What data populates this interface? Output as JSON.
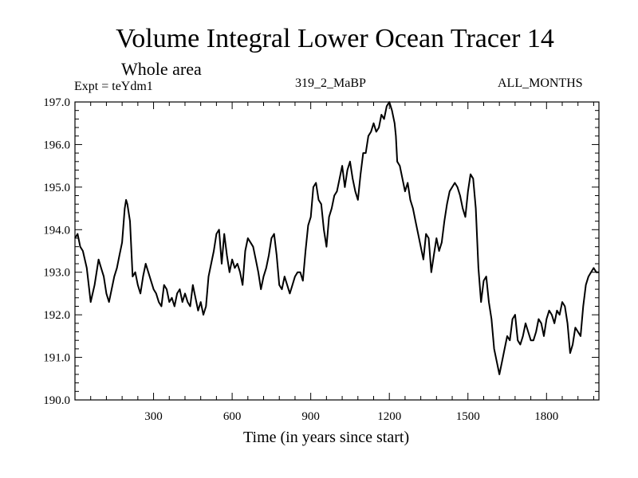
{
  "chart_data": {
    "type": "line",
    "title": "Volume Integral Lower Ocean Tracer 14",
    "subtitle": "Whole area",
    "annotations": {
      "expt": "Expt = teYdm1",
      "period": "319_2_MaBP",
      "months": "ALL_MONTHS"
    },
    "xlabel": "Time (in years since start)",
    "ylabel": "",
    "xlim": [
      0,
      2000
    ],
    "ylim": [
      190.0,
      197.0
    ],
    "x_ticks": [
      300,
      600,
      900,
      1200,
      1500,
      1800
    ],
    "x_tick_labels": [
      "300",
      "600",
      "900",
      "1200",
      "1500",
      "1800"
    ],
    "y_ticks": [
      190.0,
      191.0,
      192.0,
      193.0,
      194.0,
      195.0,
      196.0,
      197.0
    ],
    "y_tick_labels": [
      "190.0",
      "191.0",
      "192.0",
      "193.0",
      "194.0",
      "195.0",
      "196.0",
      "197.0"
    ],
    "grid": false,
    "series": [
      {
        "name": "Volume Integral Lower Ocean Tracer 14",
        "x": [
          0,
          10,
          20,
          30,
          45,
          60,
          75,
          90,
          100,
          110,
          120,
          130,
          140,
          150,
          160,
          170,
          180,
          190,
          195,
          200,
          210,
          220,
          230,
          240,
          250,
          260,
          270,
          280,
          290,
          300,
          310,
          320,
          330,
          340,
          350,
          360,
          370,
          380,
          390,
          400,
          410,
          420,
          430,
          440,
          450,
          460,
          470,
          480,
          490,
          500,
          510,
          520,
          530,
          540,
          550,
          560,
          570,
          580,
          590,
          600,
          610,
          620,
          630,
          640,
          650,
          660,
          670,
          680,
          690,
          700,
          710,
          720,
          730,
          740,
          750,
          760,
          770,
          780,
          790,
          800,
          810,
          820,
          830,
          840,
          850,
          860,
          870,
          880,
          890,
          900,
          910,
          920,
          930,
          940,
          950,
          960,
          970,
          980,
          990,
          1000,
          1010,
          1020,
          1030,
          1040,
          1050,
          1060,
          1070,
          1080,
          1090,
          1100,
          1110,
          1120,
          1130,
          1140,
          1150,
          1160,
          1170,
          1180,
          1190,
          1200,
          1210,
          1220,
          1225,
          1230,
          1240,
          1250,
          1260,
          1270,
          1280,
          1290,
          1300,
          1310,
          1320,
          1330,
          1340,
          1350,
          1360,
          1370,
          1380,
          1390,
          1400,
          1410,
          1420,
          1430,
          1440,
          1450,
          1460,
          1470,
          1480,
          1490,
          1500,
          1510,
          1520,
          1530,
          1540,
          1550,
          1560,
          1570,
          1580,
          1590,
          1600,
          1610,
          1620,
          1630,
          1640,
          1650,
          1660,
          1670,
          1680,
          1690,
          1700,
          1710,
          1720,
          1730,
          1740,
          1750,
          1760,
          1770,
          1780,
          1790,
          1800,
          1810,
          1820,
          1830,
          1840,
          1850,
          1860,
          1870,
          1880,
          1890,
          1900,
          1910,
          1920,
          1930,
          1940,
          1950,
          1960,
          1970,
          1980,
          1990,
          2000
        ],
        "values": [
          193.8,
          193.9,
          193.6,
          193.5,
          193.1,
          192.3,
          192.7,
          193.3,
          193.1,
          192.9,
          192.5,
          192.3,
          192.6,
          192.9,
          193.1,
          193.4,
          193.7,
          194.5,
          194.7,
          194.6,
          194.2,
          192.9,
          193.0,
          192.7,
          192.5,
          192.9,
          193.2,
          193.0,
          192.8,
          192.6,
          192.5,
          192.3,
          192.2,
          192.7,
          192.6,
          192.3,
          192.4,
          192.2,
          192.5,
          192.6,
          192.3,
          192.5,
          192.3,
          192.2,
          192.7,
          192.4,
          192.1,
          192.3,
          192.0,
          192.2,
          192.9,
          193.2,
          193.5,
          193.9,
          194.0,
          193.2,
          193.9,
          193.4,
          193.0,
          193.3,
          193.1,
          193.2,
          193.0,
          192.7,
          193.5,
          193.8,
          193.7,
          193.6,
          193.3,
          193.0,
          192.6,
          192.9,
          193.1,
          193.4,
          193.8,
          193.9,
          193.4,
          192.7,
          192.6,
          192.9,
          192.7,
          192.5,
          192.7,
          192.9,
          193.0,
          193.0,
          192.8,
          193.5,
          194.1,
          194.3,
          195.0,
          195.1,
          194.7,
          194.6,
          194.0,
          193.6,
          194.3,
          194.5,
          194.8,
          194.9,
          195.2,
          195.5,
          195.0,
          195.4,
          195.6,
          195.2,
          194.9,
          194.7,
          195.3,
          195.8,
          195.8,
          196.2,
          196.3,
          196.5,
          196.3,
          196.4,
          196.7,
          196.6,
          196.9,
          197.0,
          196.8,
          196.5,
          196.2,
          195.6,
          195.5,
          195.2,
          194.9,
          195.1,
          194.7,
          194.5,
          194.2,
          193.9,
          193.6,
          193.3,
          193.9,
          193.8,
          193.0,
          193.4,
          193.8,
          193.5,
          193.7,
          194.2,
          194.6,
          194.9,
          195.0,
          195.1,
          195.0,
          194.8,
          194.5,
          194.3,
          194.9,
          195.3,
          195.2,
          194.5,
          193.1,
          192.3,
          192.8,
          192.9,
          192.3,
          191.9,
          191.2,
          190.9,
          190.6,
          190.9,
          191.2,
          191.5,
          191.4,
          191.9,
          192.0,
          191.4,
          191.3,
          191.5,
          191.8,
          191.6,
          191.4,
          191.4,
          191.6,
          191.9,
          191.8,
          191.5,
          191.9,
          192.1,
          192.0,
          191.8,
          192.1,
          192.0,
          192.3,
          192.2,
          191.8,
          191.1,
          191.3,
          191.7,
          191.6,
          191.5,
          192.2,
          192.7,
          192.9,
          193.0,
          193.1,
          193.0,
          193.0
        ]
      }
    ]
  }
}
